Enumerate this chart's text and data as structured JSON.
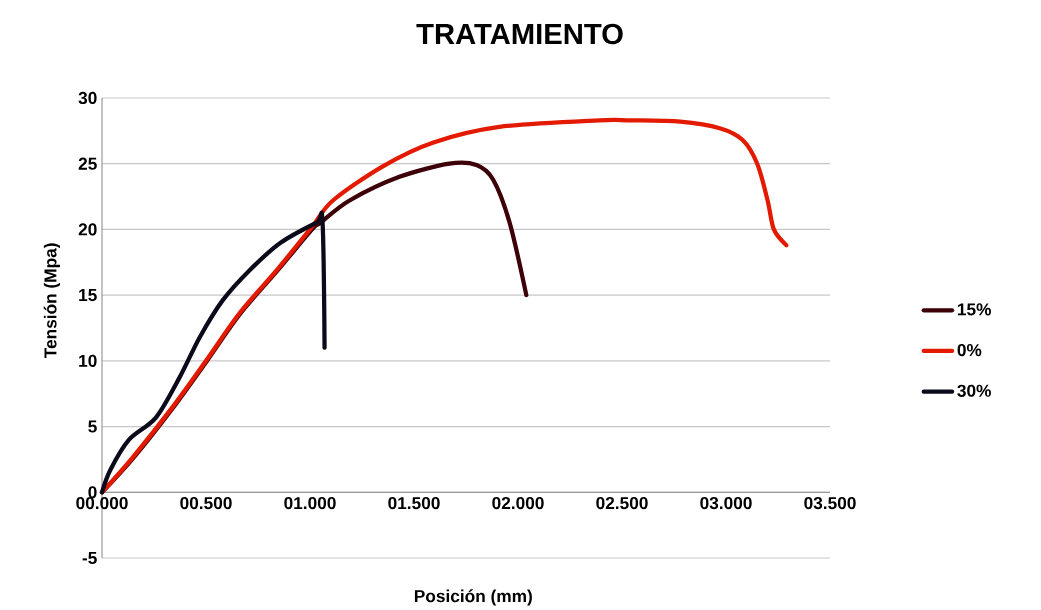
{
  "chart_data": {
    "type": "line",
    "title": "TRATAMIENTO",
    "xlabel": "Posición (mm)",
    "ylabel": "Tensión (Mpa)",
    "xlim": [
      0,
      3.5
    ],
    "ylim": [
      -5,
      30
    ],
    "xticks": [
      {
        "value": 0,
        "label": "00.000"
      },
      {
        "value": 0.5,
        "label": "00.500"
      },
      {
        "value": 1,
        "label": "01.000"
      },
      {
        "value": 1.5,
        "label": "01.500"
      },
      {
        "value": 2,
        "label": "02.000"
      },
      {
        "value": 2.5,
        "label": "02.500"
      },
      {
        "value": 3,
        "label": "03.000"
      },
      {
        "value": 3.5,
        "label": "03.500"
      }
    ],
    "yticks": [
      -5,
      0,
      5,
      10,
      15,
      20,
      25,
      30
    ],
    "grid": "y",
    "legend": "right",
    "line_style": "solid",
    "series": [
      {
        "name": "15%",
        "color": "#3d0008",
        "x": [
          0,
          0.15,
          0.34,
          0.5,
          0.66,
          0.84,
          1.01,
          1.05,
          1.19,
          1.43,
          1.67,
          1.8,
          1.88,
          1.96,
          2.04
        ],
        "values": [
          0,
          2.6,
          6.4,
          9.9,
          13.5,
          16.8,
          20.0,
          20.5,
          22.2,
          24.0,
          25.0,
          24.9,
          23.8,
          20.5,
          15.0
        ]
      },
      {
        "name": "0%",
        "color": "#e31a00",
        "x": [
          0,
          0.15,
          0.34,
          0.5,
          0.66,
          0.84,
          1.01,
          1.11,
          1.35,
          1.59,
          1.91,
          2.39,
          2.54,
          2.78,
          2.97,
          3.08,
          3.15,
          3.2,
          3.23,
          3.29
        ],
        "values": [
          0,
          2.7,
          6.5,
          10.0,
          13.6,
          16.9,
          20.2,
          22.2,
          24.8,
          26.6,
          27.8,
          28.3,
          28.3,
          28.2,
          27.7,
          26.8,
          25.0,
          22.2,
          20.0,
          18.8
        ]
      },
      {
        "name": "30%",
        "color": "#0a0a1a",
        "x": [
          0,
          0.04,
          0.13,
          0.26,
          0.375,
          0.47,
          0.58,
          0.71,
          0.86,
          1.03,
          1.06,
          1.07
        ],
        "values": [
          0,
          1.7,
          4.0,
          5.7,
          8.8,
          11.8,
          14.6,
          16.9,
          19.0,
          20.5,
          20.6,
          11.0
        ]
      }
    ]
  }
}
